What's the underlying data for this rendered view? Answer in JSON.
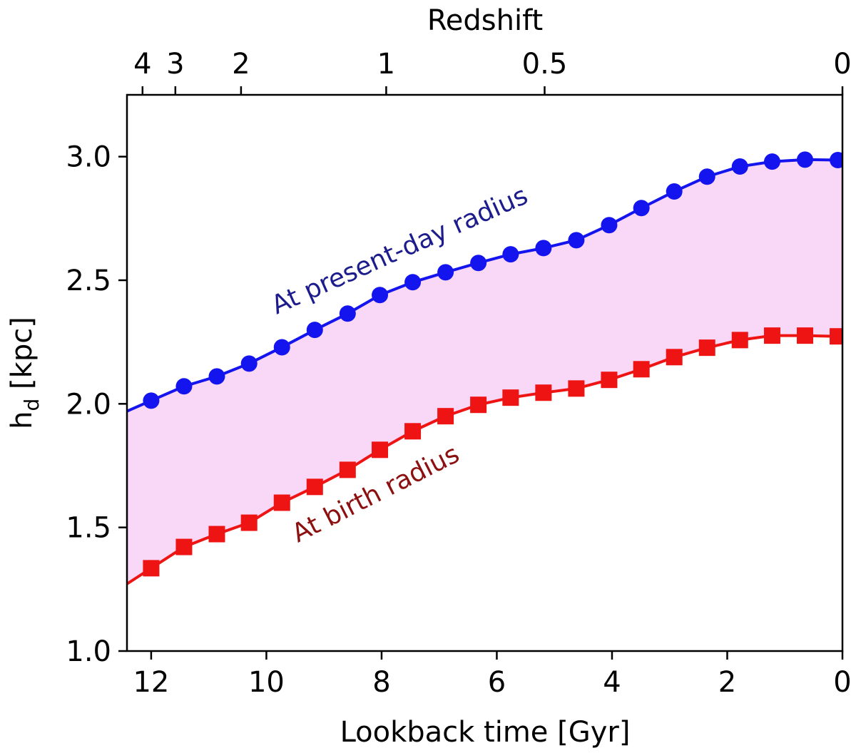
{
  "chart_data": {
    "type": "line",
    "xlabel": "Lookback time [Gyr]",
    "ylabel": {
      "base": "h",
      "sub": "d",
      "unit": "[kpc]"
    },
    "x2label": "Redshift",
    "xlim": [
      12.42,
      0
    ],
    "ylim": [
      1.0,
      3.25
    ],
    "xticks": [
      12,
      10,
      8,
      6,
      4,
      2,
      0
    ],
    "yticks": [
      {
        "value": 1.0,
        "label": "1.0"
      },
      {
        "value": 1.5,
        "label": "1.5"
      },
      {
        "value": 2.0,
        "label": "2.0"
      },
      {
        "value": 2.5,
        "label": "2.5"
      },
      {
        "value": 3.0,
        "label": "3.0"
      }
    ],
    "x2ticks": [
      {
        "value": 12.15,
        "label": "4"
      },
      {
        "value": 11.58,
        "label": "3"
      },
      {
        "value": 10.44,
        "label": "2"
      },
      {
        "value": 7.92,
        "label": "1"
      },
      {
        "value": 5.17,
        "label": "0.5"
      },
      {
        "value": 0,
        "label": "0"
      }
    ],
    "x": [
      12.0,
      11.43,
      10.86,
      10.3,
      9.73,
      9.16,
      8.59,
      8.03,
      7.46,
      6.89,
      6.32,
      5.76,
      5.19,
      4.62,
      4.05,
      3.49,
      2.92,
      2.35,
      1.78,
      1.22,
      0.65,
      0.08
    ],
    "series": [
      {
        "name": "At present-day radius",
        "color": "#1414ee",
        "label_color": "#1c1c8c",
        "marker": "circle",
        "values": [
          2.013,
          2.071,
          2.111,
          2.163,
          2.229,
          2.299,
          2.365,
          2.44,
          2.492,
          2.532,
          2.57,
          2.605,
          2.63,
          2.662,
          2.723,
          2.792,
          2.859,
          2.919,
          2.96,
          2.98,
          2.988,
          2.986
        ]
      },
      {
        "name": "At birth radius",
        "color": "#ee1414",
        "label_color": "#8c1010",
        "marker": "square",
        "values": [
          1.335,
          1.421,
          1.473,
          1.519,
          1.6,
          1.664,
          1.733,
          1.814,
          1.889,
          1.95,
          1.996,
          2.025,
          2.045,
          2.062,
          2.097,
          2.14,
          2.189,
          2.227,
          2.258,
          2.276,
          2.276,
          2.273
        ]
      }
    ],
    "fill_between_color": "#f8d8f6"
  }
}
